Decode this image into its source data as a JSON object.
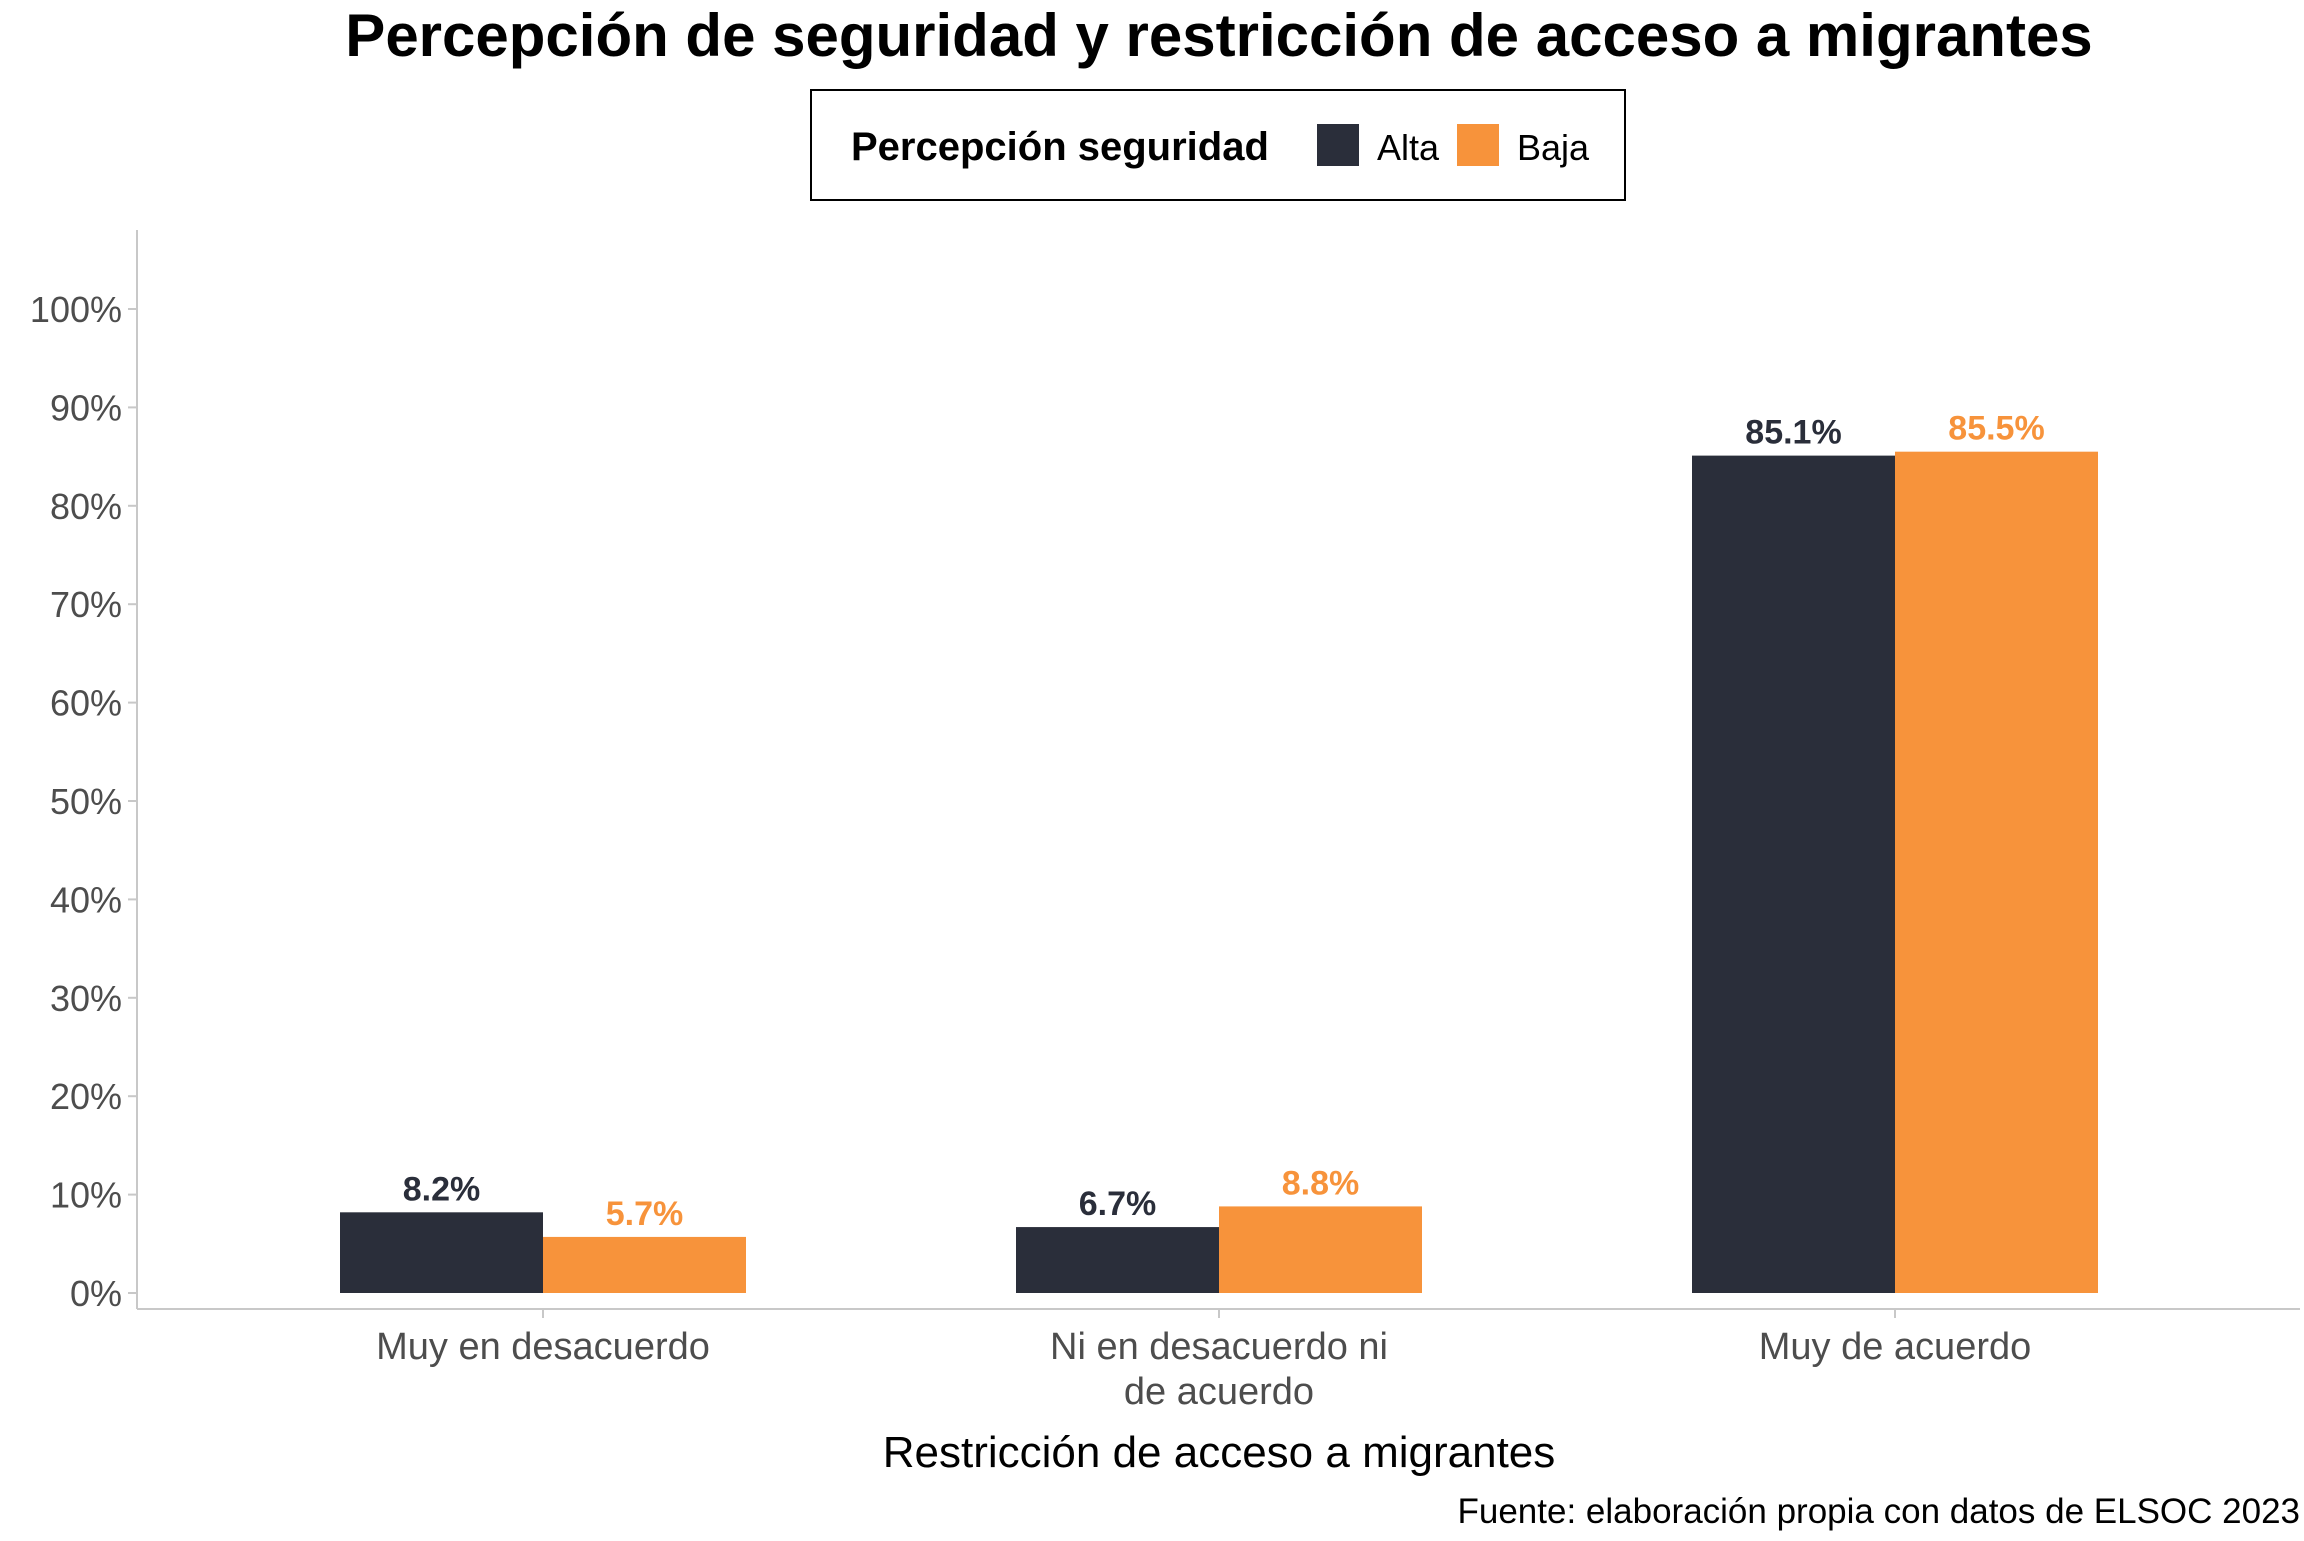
{
  "chart_data": {
    "type": "bar",
    "title": "Percepción de seguridad y restricción de acceso a migrantes",
    "xlabel": "Restricción de acceso a migrantes",
    "ylabel": "",
    "caption": "Fuente: elaboración propia con datos de ELSOC 2023",
    "categories": [
      [
        "Muy en desacuerdo"
      ],
      [
        "Ni en desacuerdo ni",
        "de acuerdo"
      ],
      [
        "Muy de acuerdo"
      ]
    ],
    "series": [
      {
        "name": "Alta",
        "color": "#2a2e3a",
        "values": [
          8.2,
          6.7,
          85.1
        ],
        "labels": [
          "8.2%",
          "6.7%",
          "85.1%"
        ]
      },
      {
        "name": "Baja",
        "color": "#f7933b",
        "values": [
          5.7,
          8.8,
          85.5
        ],
        "labels": [
          "5.7%",
          "8.8%",
          "85.5%"
        ]
      }
    ],
    "legend": {
      "title": "Percepción seguridad",
      "position": "top"
    },
    "ylim": [
      0,
      100
    ],
    "yticks": [
      0,
      10,
      20,
      30,
      40,
      50,
      60,
      70,
      80,
      90,
      100
    ],
    "ytick_labels": [
      "0%",
      "10%",
      "20%",
      "30%",
      "40%",
      "50%",
      "60%",
      "70%",
      "80%",
      "90%",
      "100%"
    ],
    "grid": false
  }
}
